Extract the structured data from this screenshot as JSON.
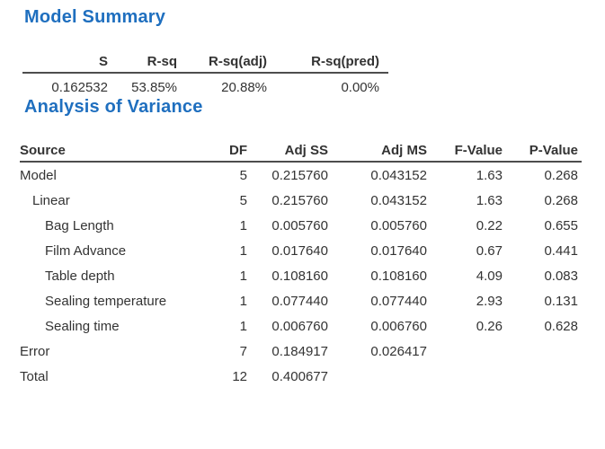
{
  "colors": {
    "heading": "#1f6fbf",
    "text": "#333333",
    "rule": "#4d4d4d",
    "background": "#ffffff"
  },
  "model_summary": {
    "title": "Model Summary",
    "columns": [
      "S",
      "R-sq",
      "R-sq(adj)",
      "R-sq(pred)"
    ],
    "row": [
      "0.162532",
      "53.85%",
      "20.88%",
      "0.00%"
    ]
  },
  "anova": {
    "title": "Analysis of Variance",
    "columns": [
      "Source",
      "DF",
      "Adj SS",
      "Adj MS",
      "F-Value",
      "P-Value"
    ],
    "rows": [
      {
        "indent": 0,
        "cells": [
          "Model",
          "5",
          "0.215760",
          "0.043152",
          "1.63",
          "0.268"
        ]
      },
      {
        "indent": 1,
        "cells": [
          "Linear",
          "5",
          "0.215760",
          "0.043152",
          "1.63",
          "0.268"
        ]
      },
      {
        "indent": 2,
        "cells": [
          "Bag Length",
          "1",
          "0.005760",
          "0.005760",
          "0.22",
          "0.655"
        ]
      },
      {
        "indent": 2,
        "cells": [
          "Film Advance",
          "1",
          "0.017640",
          "0.017640",
          "0.67",
          "0.441"
        ]
      },
      {
        "indent": 2,
        "cells": [
          "Table depth",
          "1",
          "0.108160",
          "0.108160",
          "4.09",
          "0.083"
        ]
      },
      {
        "indent": 2,
        "cells": [
          "Sealing temperature",
          "1",
          "0.077440",
          "0.077440",
          "2.93",
          "0.131"
        ]
      },
      {
        "indent": 2,
        "cells": [
          "Sealing time",
          "1",
          "0.006760",
          "0.006760",
          "0.26",
          "0.628"
        ]
      },
      {
        "indent": 0,
        "cells": [
          "Error",
          "7",
          "0.184917",
          "0.026417",
          "",
          ""
        ]
      },
      {
        "indent": 0,
        "cells": [
          "Total",
          "12",
          "0.400677",
          "",
          "",
          ""
        ]
      }
    ]
  }
}
